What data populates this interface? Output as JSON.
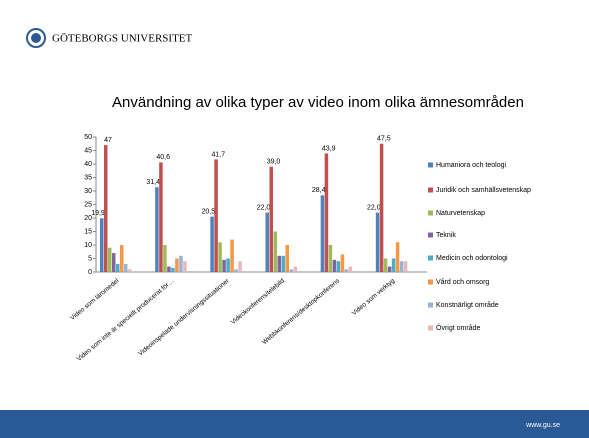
{
  "header": {
    "title": "GÖTEBORGS UNIVERSITET"
  },
  "footer": {
    "text": "www.gu.se"
  },
  "chart_data": {
    "type": "bar",
    "title": "Användning av olika typer av video inom olika ämnesområden",
    "categories": [
      "Video som läromedel",
      "Video som inte är speciellt producerat för…",
      "Videoinspelade undervisningssituationer",
      "Videokonferens/telebild",
      "Webbkonferens/desktopkonferens",
      "Video som verktyg"
    ],
    "series": [
      {
        "name": "Humaniora och teologi",
        "color": "#4f81bd",
        "values": [
          19.9,
          31.4,
          20.5,
          22.0,
          28.4,
          22.0
        ],
        "value_labels": [
          "19,9",
          "31,4",
          "20,5",
          "22,0",
          "28,4",
          "22,0"
        ]
      },
      {
        "name": "Juridik och samhällsvetenskap",
        "color": "#c0504d",
        "values": [
          47,
          40.6,
          41.7,
          39.0,
          43.9,
          47.5
        ],
        "value_labels": [
          "47",
          "40,6",
          "41,7",
          "39,0",
          "43,9",
          "47,5"
        ]
      },
      {
        "name": "Naturvetenskap",
        "color": "#9bbb59",
        "values": [
          9,
          10,
          11,
          15,
          10,
          5
        ]
      },
      {
        "name": "Teknik",
        "color": "#8064a2",
        "values": [
          7,
          2,
          4.5,
          6,
          4.5,
          2
        ]
      },
      {
        "name": "Medicin och odontologi",
        "color": "#4bacc6",
        "values": [
          3,
          1.5,
          5,
          6,
          4,
          5
        ]
      },
      {
        "name": "Vård och omsorg",
        "color": "#f79646",
        "values": [
          10,
          5,
          12,
          10,
          6.5,
          11
        ]
      },
      {
        "name": "Konstnärligt område",
        "color": "#95b3d7",
        "values": [
          3,
          6,
          1,
          1,
          1,
          4
        ]
      },
      {
        "name": "Övrigt område",
        "color": "#e6b9b8",
        "values": [
          1,
          4,
          4,
          2,
          2,
          4
        ]
      }
    ],
    "ylim": [
      0,
      50
    ],
    "yticks": [
      0,
      5,
      10,
      15,
      20,
      25,
      30,
      35,
      40,
      45,
      50
    ],
    "legend": "right"
  }
}
